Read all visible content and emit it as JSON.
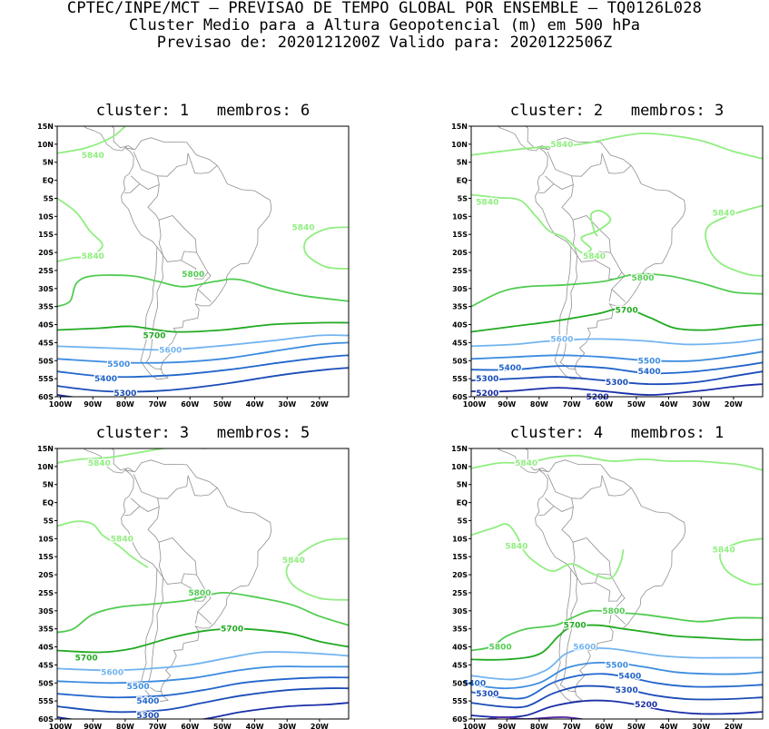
{
  "header": {
    "line1": "CPTEC/INPE/MCT — PREVISAO DE TEMPO GLOBAL POR ENSEMBLE — TQ0126L028",
    "line2": "Cluster Medio para a Altura Geopotencial (m) em 500 hPa",
    "line3": "Previsao de: 2020121200Z    Valido para: 2020122506Z"
  },
  "axes": {
    "lat_labels": [
      "15N",
      "10N",
      "5N",
      "EQ",
      "5S",
      "10S",
      "15S",
      "20S",
      "25S",
      "30S",
      "35S",
      "40S",
      "45S",
      "50S",
      "55S",
      "60S"
    ],
    "lon_labels": [
      "100W",
      "90W",
      "80W",
      "70W",
      "60W",
      "50W",
      "40W",
      "30W",
      "20W"
    ]
  },
  "colors": {
    "c5840": "#90ee80",
    "c5800": "#52cc52",
    "c5700": "#22aa22",
    "c5600": "#72b4f0",
    "c5500": "#3c8ce0",
    "c5400": "#2266cc",
    "c5300": "#1a4cb8",
    "c5200": "#1a2ea8",
    "c5100": "#5830a8",
    "coast": "#909090"
  },
  "panels": [
    {
      "title": "cluster: 1   membros: 6",
      "labels": [
        {
          "text": "5840",
          "lon": -90,
          "lat": 7
        },
        {
          "text": "5840",
          "lon": -90,
          "lat": -21
        },
        {
          "text": "5840",
          "lon": -25,
          "lat": -13
        },
        {
          "text": "5800",
          "lon": -59,
          "lat": -26
        },
        {
          "text": "5700",
          "lon": -71,
          "lat": -43
        },
        {
          "text": "5600",
          "lon": -66,
          "lat": -47
        },
        {
          "text": "5500",
          "lon": -82,
          "lat": -51
        },
        {
          "text": "5400",
          "lon": -86,
          "lat": -55
        },
        {
          "text": "5300",
          "lon": -80,
          "lat": -59
        }
      ]
    },
    {
      "title": "cluster: 2   membros: 3",
      "labels": [
        {
          "text": "5840",
          "lon": -73,
          "lat": 10
        },
        {
          "text": "5840",
          "lon": -96,
          "lat": -6
        },
        {
          "text": "5840",
          "lon": -23,
          "lat": -9
        },
        {
          "text": "5840",
          "lon": -63,
          "lat": -21
        },
        {
          "text": "5800",
          "lon": -48,
          "lat": -27
        },
        {
          "text": "5700",
          "lon": -53,
          "lat": -36
        },
        {
          "text": "5600",
          "lon": -73,
          "lat": -44
        },
        {
          "text": "5500",
          "lon": -46,
          "lat": -50
        },
        {
          "text": "5400",
          "lon": -89,
          "lat": -52
        },
        {
          "text": "5400",
          "lon": -46,
          "lat": -53
        },
        {
          "text": "5300",
          "lon": -96,
          "lat": -55
        },
        {
          "text": "5300",
          "lon": -56,
          "lat": -56
        },
        {
          "text": "5200",
          "lon": -96,
          "lat": -59
        },
        {
          "text": "5200",
          "lon": -62,
          "lat": -60
        }
      ]
    },
    {
      "title": "cluster: 3   membros: 5",
      "labels": [
        {
          "text": "5840",
          "lon": -88,
          "lat": 11
        },
        {
          "text": "5840",
          "lon": -81,
          "lat": -10
        },
        {
          "text": "5840",
          "lon": -28,
          "lat": -16
        },
        {
          "text": "5800",
          "lon": -57,
          "lat": -25
        },
        {
          "text": "5700",
          "lon": -47,
          "lat": -35
        },
        {
          "text": "5700",
          "lon": -92,
          "lat": -43
        },
        {
          "text": "5600",
          "lon": -84,
          "lat": -47
        },
        {
          "text": "5500",
          "lon": -76,
          "lat": -51
        },
        {
          "text": "5400",
          "lon": -73,
          "lat": -55
        },
        {
          "text": "5300",
          "lon": -73,
          "lat": -59
        }
      ]
    },
    {
      "title": "cluster: 4   membros: 1",
      "labels": [
        {
          "text": "5840",
          "lon": -84,
          "lat": 11
        },
        {
          "text": "5840",
          "lon": -87,
          "lat": -12
        },
        {
          "text": "5840",
          "lon": -23,
          "lat": -13
        },
        {
          "text": "5800",
          "lon": -57,
          "lat": -30
        },
        {
          "text": "5800",
          "lon": -92,
          "lat": -40
        },
        {
          "text": "5700",
          "lon": -69,
          "lat": -34
        },
        {
          "text": "5600",
          "lon": -66,
          "lat": -40
        },
        {
          "text": "5500",
          "lon": -56,
          "lat": -45
        },
        {
          "text": "5400",
          "lon": -52,
          "lat": -48
        },
        {
          "text": "5400",
          "lon": -100,
          "lat": -50
        },
        {
          "text": "5300",
          "lon": -96,
          "lat": -53
        },
        {
          "text": "5300",
          "lon": -53,
          "lat": -52
        },
        {
          "text": "5200",
          "lon": -47,
          "lat": -56
        }
      ]
    }
  ]
}
